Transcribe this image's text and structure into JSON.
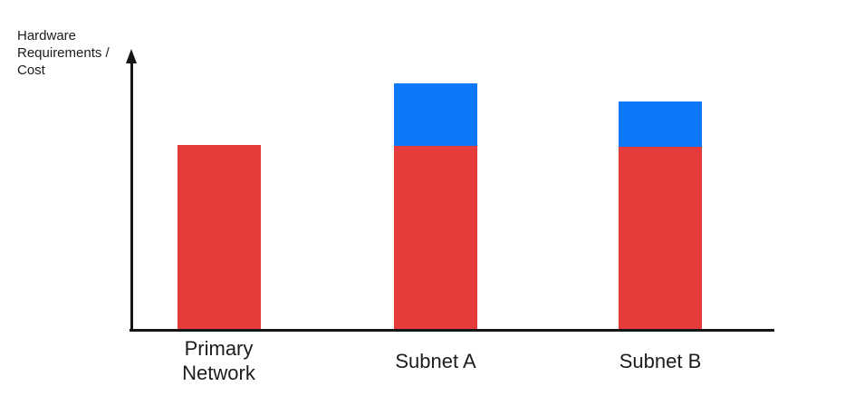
{
  "labels": {
    "ylabel": "Hardware Requirements / Cost"
  },
  "colors": {
    "red_segment": "#E53B3B",
    "blue_segment": "#0E78FB",
    "axis": "#161616",
    "text": "#1C1C1C",
    "background": "#FFFFFF"
  },
  "chart_data": {
    "type": "bar",
    "stacked": true,
    "title": "",
    "xlabel": "",
    "ylabel": "Hardware Requirements / Cost",
    "categories": [
      "Primary Network",
      "Subnet A",
      "Subnet B"
    ],
    "series": [
      {
        "name": "red-segment-base",
        "color": "#E53B3B",
        "values": [
          204,
          203,
          202
        ]
      },
      {
        "name": "blue-segment-overhead",
        "color": "#0E78FB",
        "values": [
          0,
          69,
          50
        ]
      }
    ],
    "units": "relative (axis has no numeric ticks; values estimated from bar heights)",
    "ylim": [
      0,
      300
    ],
    "grid": false,
    "legend_position": "none",
    "axis_ticks": "none",
    "y_axis_arrow": true
  }
}
